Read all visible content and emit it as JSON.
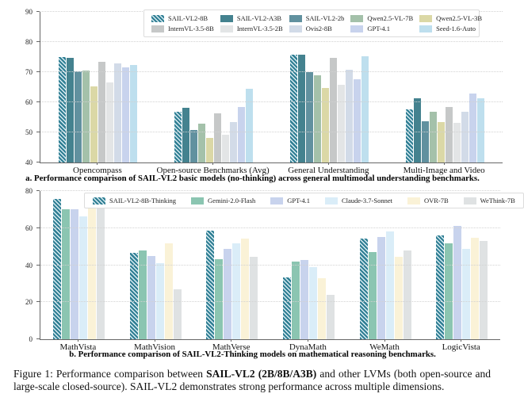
{
  "figure": {
    "caption_a": "a. Performance comparison of SAIL-VL2 basic models (no-thinking) across general multimodal understanding benchmarks.",
    "caption_b": "b. Performance comparison of SAIL-VL2-Thinking models on mathematical reasoning benchmarks.",
    "caption": {
      "prefix": "Figure 1: Performance comparison between ",
      "bold": "SAIL-VL2 (2B/8B/A3B)",
      "suffix": " and other LVMs (both open-source and large-scale closed-source). SAIL-VL2 demonstrates strong performance across multiple dimensions."
    }
  },
  "chart_data": [
    {
      "type": "bar",
      "title": "General multimodal understanding benchmarks",
      "categories": [
        "Opencompass",
        "Open-source Benchmarks (Avg)",
        "General Understanding",
        "Multi-Image and Video"
      ],
      "ylim": [
        40,
        90
      ],
      "yticks": [
        40,
        50,
        60,
        70,
        80,
        90
      ],
      "grid": "dotted-horizontal",
      "legend_position": "top-inside",
      "series": [
        {
          "name": "SAIL-VL2-8B",
          "color": "#2f7e93",
          "hatch": true,
          "values": [
            75.0,
            56.8,
            75.8,
            57.7
          ]
        },
        {
          "name": "SAIL-VL2-A3B",
          "color": "#44828f",
          "hatch": false,
          "values": [
            74.8,
            58.1,
            75.9,
            61.2
          ]
        },
        {
          "name": "SAIL-VL2-2b",
          "color": "#61919f",
          "hatch": false,
          "values": [
            70.3,
            50.8,
            70.0,
            53.7
          ]
        },
        {
          "name": "Qwen2.5-VL-7B",
          "color": "#a4c1aa",
          "hatch": false,
          "values": [
            70.6,
            53.0,
            69.0,
            56.9
          ]
        },
        {
          "name": "Qwen2.5-VL-3B",
          "color": "#dbd8a6",
          "hatch": false,
          "values": [
            65.3,
            48.1,
            64.8,
            53.5
          ]
        },
        {
          "name": "InternVL-3.5-8B",
          "color": "#c6c8c8",
          "hatch": false,
          "values": [
            73.5,
            56.2,
            74.7,
            58.4
          ]
        },
        {
          "name": "InternVL-3.5-2B",
          "color": "#e3e5e6",
          "hatch": false,
          "values": [
            66.6,
            49.2,
            65.7,
            53.2
          ]
        },
        {
          "name": "Ovis2-8B",
          "color": "#d2dbe8",
          "hatch": false,
          "values": [
            72.8,
            53.4,
            70.7,
            56.9
          ]
        },
        {
          "name": "GPT-4.1",
          "color": "#c8d3ed",
          "hatch": false,
          "values": [
            71.5,
            58.4,
            67.6,
            62.9
          ]
        },
        {
          "name": "Seed-1.6-Auto",
          "color": "#bedfee",
          "hatch": false,
          "values": [
            72.4,
            64.5,
            75.3,
            61.4
          ]
        }
      ]
    },
    {
      "type": "bar",
      "title": "Mathematical reasoning benchmarks",
      "categories": [
        "MathVista",
        "MathVision",
        "MathVerse",
        "DynaMath",
        "WeMath",
        "LogicVista"
      ],
      "ylim": [
        0,
        80
      ],
      "yticks": [
        0,
        20,
        40,
        60,
        80
      ],
      "grid": "dotted-horizontal",
      "legend_position": "top-inside",
      "series": [
        {
          "name": "SAIL-VL2-8B-Thinking",
          "color": "#2f7e93",
          "hatch": true,
          "values": [
            75.9,
            46.7,
            58.8,
            33.2,
            54.4,
            56.2
          ]
        },
        {
          "name": "Gemini-2.0-Flash",
          "color": "#8bc5b1",
          "hatch": false,
          "values": [
            70.1,
            47.8,
            43.4,
            41.8,
            47.0,
            52.0
          ]
        },
        {
          "name": "GPT-4.1",
          "color": "#c8d3ed",
          "hatch": false,
          "values": [
            70.0,
            44.8,
            48.7,
            42.9,
            55.0,
            61.1
          ]
        },
        {
          "name": "Claude-3.7-Sonnet",
          "color": "#daedf8",
          "hatch": false,
          "values": [
            66.5,
            41.2,
            52.0,
            39.1,
            58.0,
            49.0
          ]
        },
        {
          "name": "OVR-7B",
          "color": "#faf2d7",
          "hatch": false,
          "values": [
            72.1,
            51.8,
            54.4,
            33.0,
            44.3,
            54.6
          ]
        },
        {
          "name": "WeThink-7B",
          "color": "#dfe2e3",
          "hatch": false,
          "values": [
            70.5,
            26.9,
            44.6,
            24.0,
            48.0,
            53.0
          ]
        }
      ]
    }
  ]
}
